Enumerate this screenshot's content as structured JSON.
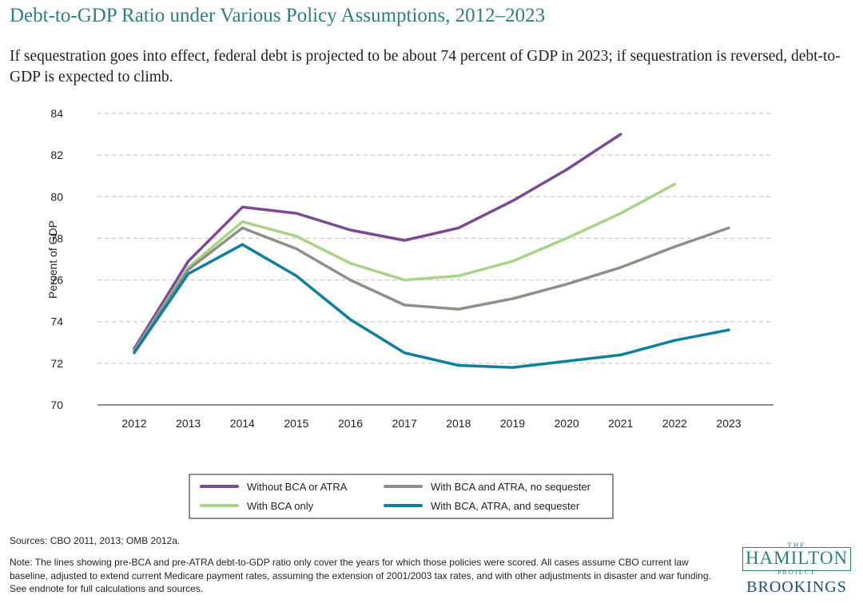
{
  "title": "Debt-to-GDP Ratio under Various Policy Assumptions, 2012–2023",
  "subtitle": "If sequestration goes into effect, federal debt is projected to be about 74 percent of GDP in 2023; if sequestration is reversed, debt-to-GDP is expected to climb.",
  "sources": "Sources: CBO 2011, 2013; OMB 2012a.",
  "note": "Note:  The lines showing pre-BCA and pre-ATRA debt-to-GDP ratio only cover the years for which those policies were scored. All cases assume CBO current law baseline, adjusted to extend current Medicare payment rates, assuming the extension of 2001/2003 tax rates, and with other adjustments in disaster and war funding. See endnote for full calculations and sources.",
  "logo": {
    "the": "THE",
    "hamilton": "HAMILTON",
    "project": "PROJECT",
    "brookings": "BROOKINGS"
  },
  "chart_data": {
    "type": "line",
    "title": "",
    "xlabel": "",
    "ylabel": "Percent of GDP",
    "x": [
      2012,
      2013,
      2014,
      2015,
      2016,
      2017,
      2018,
      2019,
      2020,
      2021,
      2022,
      2023
    ],
    "ylim": [
      70,
      84
    ],
    "yticks": [
      70,
      72,
      74,
      76,
      78,
      80,
      82,
      84
    ],
    "grid": "horizontal dashed",
    "legend_position": "bottom",
    "series": [
      {
        "name": "Without BCA or ATRA",
        "color": "#7b4a94",
        "values": [
          72.7,
          76.9,
          79.5,
          79.2,
          78.4,
          77.9,
          78.5,
          79.8,
          81.3,
          83.0,
          null,
          null
        ]
      },
      {
        "name": "With BCA only",
        "color": "#a8d48a",
        "values": [
          72.6,
          76.6,
          78.8,
          78.1,
          76.8,
          76.0,
          76.2,
          76.9,
          78.0,
          79.2,
          80.6,
          null
        ]
      },
      {
        "name": "With BCA and ATRA, no sequester",
        "color": "#8e8f87",
        "values": [
          72.6,
          76.5,
          78.5,
          77.5,
          76.0,
          74.8,
          74.6,
          75.1,
          75.8,
          76.6,
          77.6,
          78.5
        ]
      },
      {
        "name": "With BCA, ATRA, and sequester",
        "color": "#0f7fa0",
        "values": [
          72.5,
          76.3,
          77.7,
          76.2,
          74.1,
          72.5,
          71.9,
          71.8,
          72.1,
          72.4,
          73.1,
          73.6
        ]
      }
    ],
    "legend_order": [
      0,
      2,
      1,
      3
    ]
  }
}
